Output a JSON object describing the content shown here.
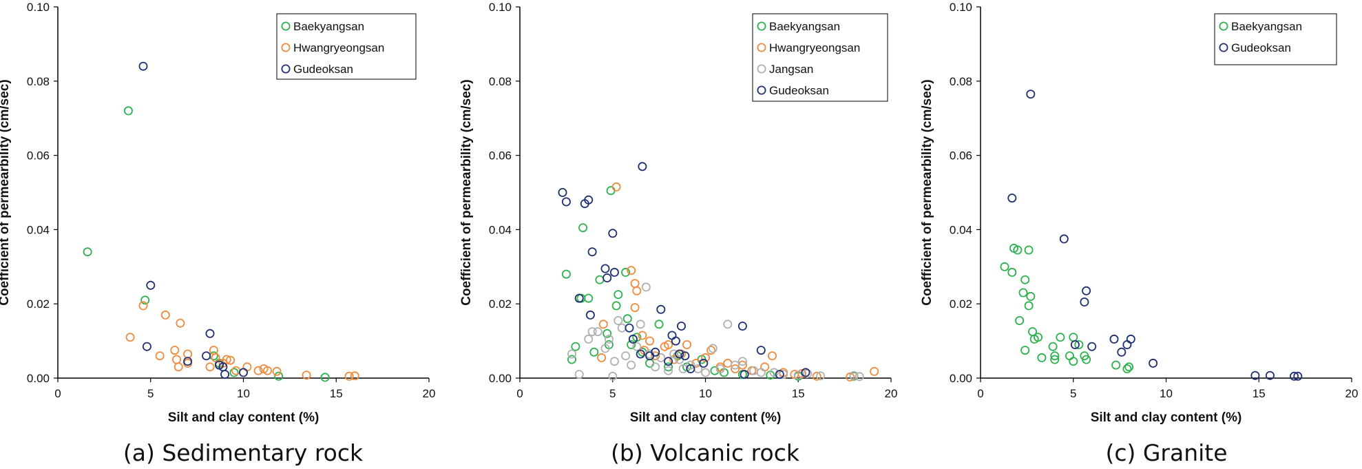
{
  "chart_data": [
    {
      "type": "scatter",
      "caption": "(a) Sedimentary rock",
      "xlabel": "Silt and clay content (%)",
      "ylabel": "Coefficient of permearbility (cm/sec)",
      "xlim": [
        0,
        20
      ],
      "ylim": [
        0,
        0.1
      ],
      "xticks": [
        "0",
        "5",
        "10",
        "15",
        "20"
      ],
      "yticks": [
        "0.00",
        "0.02",
        "0.04",
        "0.06",
        "0.08",
        "0.10"
      ],
      "grid": false,
      "legend_position": "top-right",
      "series": [
        {
          "name": "Baekyangsan",
          "color": "#2bb24c",
          "points": [
            [
              1.6,
              0.034
            ],
            [
              3.8,
              0.072
            ],
            [
              4.7,
              0.021
            ],
            [
              8.4,
              0.006
            ],
            [
              8.7,
              0.004
            ],
            [
              9.5,
              0.0015
            ],
            [
              11.9,
              0.0005
            ],
            [
              14.4,
              0.0002
            ]
          ]
        },
        {
          "name": "Hwangryeongsan",
          "color": "#f08a3c",
          "points": [
            [
              3.9,
              0.011
            ],
            [
              4.6,
              0.0195
            ],
            [
              5.5,
              0.006
            ],
            [
              5.8,
              0.017
            ],
            [
              6.3,
              0.0075
            ],
            [
              6.4,
              0.005
            ],
            [
              6.5,
              0.003
            ],
            [
              6.6,
              0.0148
            ],
            [
              7.0,
              0.0065
            ],
            [
              7.0,
              0.004
            ],
            [
              8.2,
              0.003
            ],
            [
              8.4,
              0.0075
            ],
            [
              8.5,
              0.0055
            ],
            [
              8.9,
              0.004
            ],
            [
              9.1,
              0.005
            ],
            [
              9.3,
              0.0048
            ],
            [
              9.6,
              0.002
            ],
            [
              10.2,
              0.003
            ],
            [
              10.8,
              0.002
            ],
            [
              11.1,
              0.0025
            ],
            [
              11.3,
              0.002
            ],
            [
              11.8,
              0.0018
            ],
            [
              13.4,
              0.0008
            ],
            [
              15.7,
              0.0005
            ],
            [
              16.0,
              0.0006
            ]
          ]
        },
        {
          "name": "Gudeoksan",
          "color": "#1f2f73",
          "points": [
            [
              4.6,
              0.084
            ],
            [
              4.8,
              0.0085
            ],
            [
              5.0,
              0.025
            ],
            [
              7.0,
              0.0045
            ],
            [
              8.0,
              0.006
            ],
            [
              8.2,
              0.012
            ],
            [
              8.7,
              0.0035
            ],
            [
              8.9,
              0.003
            ],
            [
              9.0,
              0.001
            ],
            [
              10.0,
              0.0015
            ]
          ]
        }
      ]
    },
    {
      "type": "scatter",
      "caption": "(b) Volcanic rock",
      "xlabel": "Silt and clay content (%)",
      "ylabel": "Coefficient of permearbility (cm/sec)",
      "xlim": [
        0,
        20
      ],
      "ylim": [
        0,
        0.1
      ],
      "xticks": [
        "0",
        "5",
        "10",
        "15",
        "20"
      ],
      "yticks": [
        "0.00",
        "0.02",
        "0.04",
        "0.06",
        "0.08",
        "0.10"
      ],
      "grid": false,
      "legend_position": "top-right",
      "series": [
        {
          "name": "Baekyangsan",
          "color": "#2bb24c",
          "points": [
            [
              2.5,
              0.028
            ],
            [
              2.8,
              0.005
            ],
            [
              3.0,
              0.0085
            ],
            [
              3.3,
              0.0215
            ],
            [
              3.4,
              0.0405
            ],
            [
              3.7,
              0.0215
            ],
            [
              4.0,
              0.007
            ],
            [
              4.3,
              0.0265
            ],
            [
              4.7,
              0.012
            ],
            [
              4.8,
              0.009
            ],
            [
              4.9,
              0.0505
            ],
            [
              5.2,
              0.0195
            ],
            [
              5.3,
              0.0225
            ],
            [
              5.7,
              0.0285
            ],
            [
              5.8,
              0.016
            ],
            [
              6.0,
              0.009
            ],
            [
              6.3,
              0.011
            ],
            [
              6.6,
              0.007
            ],
            [
              7.0,
              0.004
            ],
            [
              7.5,
              0.0145
            ],
            [
              8.0,
              0.003
            ],
            [
              8.5,
              0.006
            ],
            [
              9.0,
              0.003
            ],
            [
              9.8,
              0.005
            ],
            [
              10.5,
              0.002
            ],
            [
              11.0,
              0.0015
            ],
            [
              12.0,
              0.001
            ],
            [
              13.5,
              0.0008
            ],
            [
              15.0,
              0.0005
            ],
            [
              18.0,
              0.0005
            ]
          ]
        },
        {
          "name": "Hwangryeongsan",
          "color": "#f08a3c",
          "points": [
            [
              4.4,
              0.0055
            ],
            [
              4.5,
              0.0145
            ],
            [
              5.2,
              0.0515
            ],
            [
              6.0,
              0.029
            ],
            [
              6.2,
              0.0255
            ],
            [
              6.3,
              0.0235
            ],
            [
              6.2,
              0.019
            ],
            [
              6.6,
              0.0115
            ],
            [
              6.7,
              0.0075
            ],
            [
              7.0,
              0.01
            ],
            [
              7.3,
              0.006
            ],
            [
              7.8,
              0.0085
            ],
            [
              8.0,
              0.009
            ],
            [
              8.3,
              0.005
            ],
            [
              8.7,
              0.0065
            ],
            [
              9.0,
              0.009
            ],
            [
              9.5,
              0.004
            ],
            [
              10.0,
              0.0055
            ],
            [
              10.3,
              0.0075
            ],
            [
              10.8,
              0.003
            ],
            [
              11.2,
              0.004
            ],
            [
              11.6,
              0.0025
            ],
            [
              12.0,
              0.0035
            ],
            [
              12.5,
              0.002
            ],
            [
              13.2,
              0.003
            ],
            [
              13.6,
              0.006
            ],
            [
              14.2,
              0.0015
            ],
            [
              14.8,
              0.001
            ],
            [
              15.2,
              0.0012
            ],
            [
              16.0,
              0.0005
            ],
            [
              17.8,
              0.0003
            ],
            [
              19.1,
              0.0018
            ]
          ]
        },
        {
          "name": "Jangsan",
          "color": "#b0b0b0",
          "points": [
            [
              2.8,
              0.0065
            ],
            [
              3.2,
              0.001
            ],
            [
              3.7,
              0.0105
            ],
            [
              3.9,
              0.0125
            ],
            [
              4.2,
              0.0125
            ],
            [
              4.6,
              0.008
            ],
            [
              4.8,
              0.0105
            ],
            [
              5.0,
              0.0005
            ],
            [
              5.1,
              0.0045
            ],
            [
              5.3,
              0.0155
            ],
            [
              5.5,
              0.0135
            ],
            [
              5.7,
              0.006
            ],
            [
              6.0,
              0.0035
            ],
            [
              6.3,
              0.0085
            ],
            [
              6.5,
              0.0145
            ],
            [
              6.8,
              0.0245
            ],
            [
              7.0,
              0.0065
            ],
            [
              7.3,
              0.003
            ],
            [
              7.6,
              0.0055
            ],
            [
              8.0,
              0.002
            ],
            [
              8.3,
              0.0065
            ],
            [
              8.6,
              0.005
            ],
            [
              8.8,
              0.0025
            ],
            [
              9.2,
              0.0035
            ],
            [
              9.6,
              0.0025
            ],
            [
              10.0,
              0.0015
            ],
            [
              10.4,
              0.008
            ],
            [
              10.8,
              0.0025
            ],
            [
              11.2,
              0.0145
            ],
            [
              11.6,
              0.0035
            ],
            [
              12.0,
              0.0045
            ],
            [
              12.6,
              0.002
            ],
            [
              13.0,
              0.0015
            ],
            [
              13.7,
              0.0015
            ],
            [
              14.2,
              0.001
            ],
            [
              15.0,
              0.0008
            ],
            [
              15.5,
              0.0012
            ],
            [
              16.2,
              0.0006
            ],
            [
              18.0,
              0.0007
            ],
            [
              18.3,
              0.0004
            ]
          ]
        },
        {
          "name": "Gudeoksan",
          "color": "#1f2f73",
          "points": [
            [
              2.3,
              0.05
            ],
            [
              2.5,
              0.0475
            ],
            [
              3.2,
              0.0215
            ],
            [
              3.5,
              0.047
            ],
            [
              3.7,
              0.048
            ],
            [
              3.8,
              0.017
            ],
            [
              3.9,
              0.034
            ],
            [
              4.6,
              0.0295
            ],
            [
              4.7,
              0.027
            ],
            [
              5.0,
              0.039
            ],
            [
              5.1,
              0.0285
            ],
            [
              5.9,
              0.0135
            ],
            [
              6.1,
              0.0105
            ],
            [
              6.5,
              0.0065
            ],
            [
              6.6,
              0.057
            ],
            [
              7.0,
              0.006
            ],
            [
              7.3,
              0.007
            ],
            [
              7.6,
              0.0185
            ],
            [
              8.0,
              0.0045
            ],
            [
              8.2,
              0.0115
            ],
            [
              8.4,
              0.01
            ],
            [
              8.6,
              0.0065
            ],
            [
              8.7,
              0.014
            ],
            [
              8.9,
              0.006
            ],
            [
              9.2,
              0.0025
            ],
            [
              9.9,
              0.004
            ],
            [
              12.0,
              0.014
            ],
            [
              12.1,
              0.001
            ],
            [
              13.0,
              0.0075
            ],
            [
              14.0,
              0.001
            ],
            [
              15.4,
              0.0015
            ]
          ]
        }
      ]
    },
    {
      "type": "scatter",
      "caption": "(c) Granite",
      "xlabel": "Silt and clay content (%)",
      "ylabel": "Coefficient of permearbility (cm/sec)",
      "xlim": [
        0,
        20
      ],
      "ylim": [
        0,
        0.1
      ],
      "xticks": [
        "0",
        "5",
        "10",
        "15",
        "20"
      ],
      "yticks": [
        "0.00",
        "0.02",
        "0.04",
        "0.06",
        "0.08",
        "0.10"
      ],
      "grid": false,
      "legend_position": "top-right",
      "series": [
        {
          "name": "Baekyangsan",
          "color": "#2bb24c",
          "points": [
            [
              1.3,
              0.03
            ],
            [
              1.7,
              0.0285
            ],
            [
              1.8,
              0.035
            ],
            [
              2.0,
              0.0345
            ],
            [
              2.1,
              0.0155
            ],
            [
              2.3,
              0.023
            ],
            [
              2.4,
              0.0265
            ],
            [
              2.4,
              0.0075
            ],
            [
              2.6,
              0.0345
            ],
            [
              2.6,
              0.0195
            ],
            [
              2.7,
              0.022
            ],
            [
              2.8,
              0.0125
            ],
            [
              2.9,
              0.0105
            ],
            [
              3.1,
              0.011
            ],
            [
              3.3,
              0.0055
            ],
            [
              3.9,
              0.0085
            ],
            [
              4.0,
              0.006
            ],
            [
              4.0,
              0.005
            ],
            [
              4.3,
              0.011
            ],
            [
              4.8,
              0.006
            ],
            [
              5.0,
              0.0045
            ],
            [
              5.0,
              0.011
            ],
            [
              5.3,
              0.009
            ],
            [
              5.6,
              0.006
            ],
            [
              5.7,
              0.005
            ],
            [
              7.3,
              0.0035
            ],
            [
              7.9,
              0.0025
            ],
            [
              8.0,
              0.003
            ]
          ]
        },
        {
          "name": "Gudeoksan",
          "color": "#1f2f73",
          "points": [
            [
              1.7,
              0.0485
            ],
            [
              2.7,
              0.0765
            ],
            [
              4.5,
              0.0375
            ],
            [
              5.1,
              0.009
            ],
            [
              5.6,
              0.0205
            ],
            [
              5.7,
              0.0235
            ],
            [
              6.0,
              0.0085
            ],
            [
              7.2,
              0.0105
            ],
            [
              7.6,
              0.007
            ],
            [
              7.9,
              0.009
            ],
            [
              8.1,
              0.0105
            ],
            [
              9.3,
              0.004
            ],
            [
              14.8,
              0.0007
            ],
            [
              15.6,
              0.0007
            ],
            [
              16.9,
              0.0005
            ],
            [
              17.1,
              0.0005
            ]
          ]
        }
      ]
    }
  ]
}
